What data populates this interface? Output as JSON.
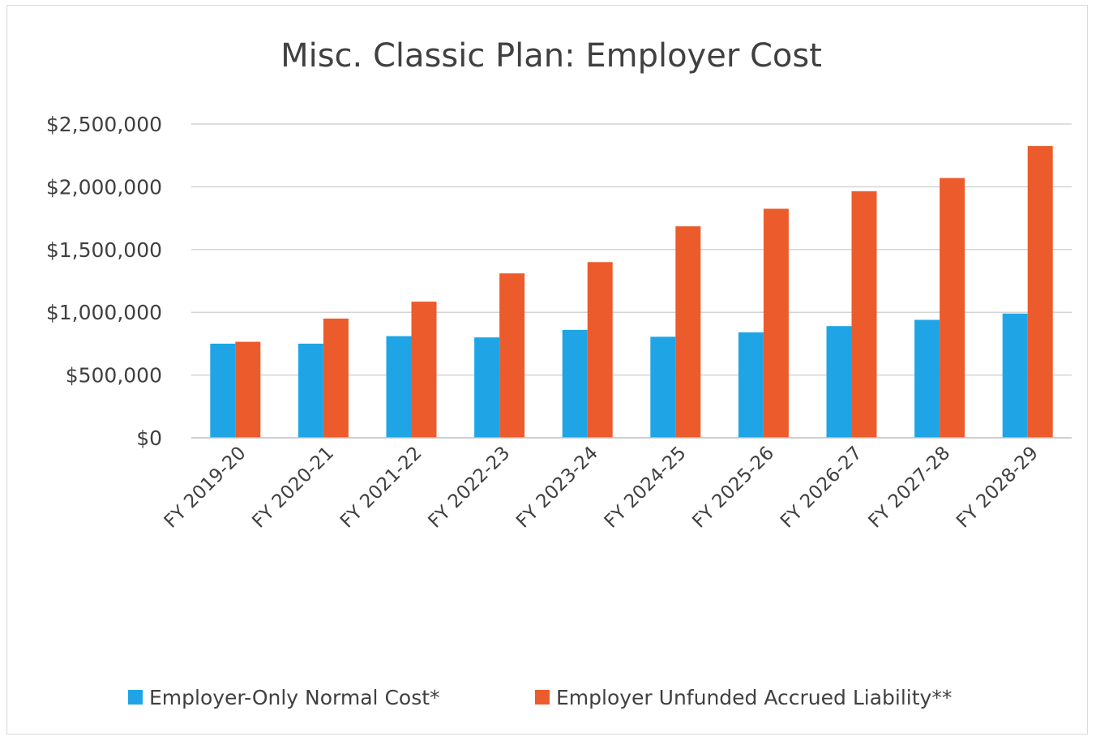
{
  "chart_data": {
    "type": "bar",
    "title": "Misc. Classic Plan:  Employer Cost",
    "xlabel": "",
    "ylabel": "",
    "categories": [
      "FY 2019-20",
      "FY 2020-21",
      "FY 2021-22",
      "FY 2022-23",
      "FY 2023-24",
      "FY 2024-25",
      "FY 2025-26",
      "FY 2026-27",
      "FY 2027-28",
      "FY 2028-29"
    ],
    "series": [
      {
        "name": "Employer-Only Normal Cost*",
        "color": "#1fa5e6",
        "values": [
          750000,
          750000,
          810000,
          800000,
          860000,
          805000,
          840000,
          890000,
          940000,
          990000
        ]
      },
      {
        "name": "Employer Unfunded Accrued Liability**",
        "color": "#ec5b2c",
        "values": [
          765000,
          950000,
          1085000,
          1310000,
          1400000,
          1685000,
          1825000,
          1965000,
          2070000,
          2325000
        ]
      }
    ],
    "ylim": [
      0,
      2500000
    ],
    "yticks": [
      0,
      500000,
      1000000,
      1500000,
      2000000,
      2500000
    ],
    "ytick_labels": [
      "$0",
      "$500,000",
      "$1,000,000",
      "$1,500,000",
      "$2,000,000",
      "$2,500,000"
    ],
    "grid": true,
    "legend_position": "bottom"
  }
}
